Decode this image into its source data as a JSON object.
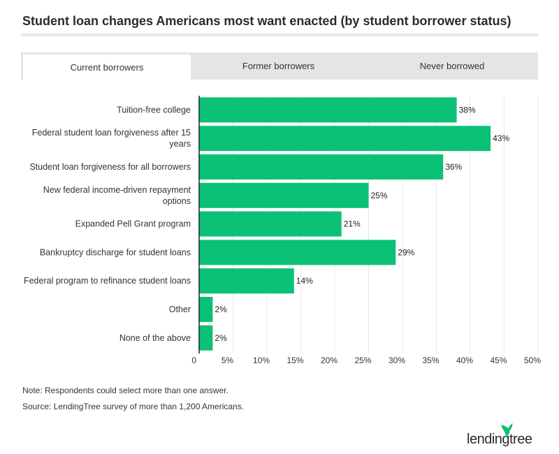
{
  "title": "Student loan changes Americans most want enacted (by student borrower status)",
  "tabs": [
    {
      "label": "Current borrowers",
      "active": true
    },
    {
      "label": "Former borrowers",
      "active": false
    },
    {
      "label": "Never borrowed",
      "active": false
    }
  ],
  "chart_data": {
    "type": "bar",
    "orientation": "horizontal",
    "categories": [
      "Tuition-free college",
      "Federal student loan forgiveness after 15 years",
      "Student loan forgiveness for all borrowers",
      "New federal income-driven repayment options",
      "Expanded Pell Grant program",
      "Bankruptcy discharge for student loans",
      "Federal program to refinance student loans",
      "Other",
      "None of the above"
    ],
    "category_lines": [
      [
        "Tuition-free college"
      ],
      [
        "Federal student loan forgiveness after 15",
        "years"
      ],
      [
        "Student loan forgiveness for all borrowers"
      ],
      [
        "New federal income-driven repayment",
        "options"
      ],
      [
        "Expanded Pell Grant program"
      ],
      [
        "Bankruptcy discharge for student loans"
      ],
      [
        "Federal program to refinance student loans"
      ],
      [
        "Other"
      ],
      [
        "None of the above"
      ]
    ],
    "values": [
      38,
      43,
      36,
      25,
      21,
      29,
      14,
      2,
      2
    ],
    "value_labels": [
      "38%",
      "43%",
      "36%",
      "25%",
      "21%",
      "29%",
      "14%",
      "2%",
      "2%"
    ],
    "xlim": [
      0,
      50
    ],
    "x_ticks": [
      0,
      5,
      10,
      15,
      20,
      25,
      30,
      35,
      40,
      45,
      50
    ],
    "x_tick_labels": [
      "0",
      "5%",
      "10%",
      "15%",
      "20%",
      "25%",
      "30%",
      "35%",
      "40%",
      "45%",
      "50%"
    ],
    "grid": true,
    "bar_color": "#0bc176"
  },
  "notes": {
    "note": "Note: Respondents could select more than one answer.",
    "source": "Source: LendingTree survey of more than 1,200 Americans."
  },
  "logo": {
    "text": "lendingtree",
    "icon": "leaf-icon",
    "color": "#0bc176"
  }
}
